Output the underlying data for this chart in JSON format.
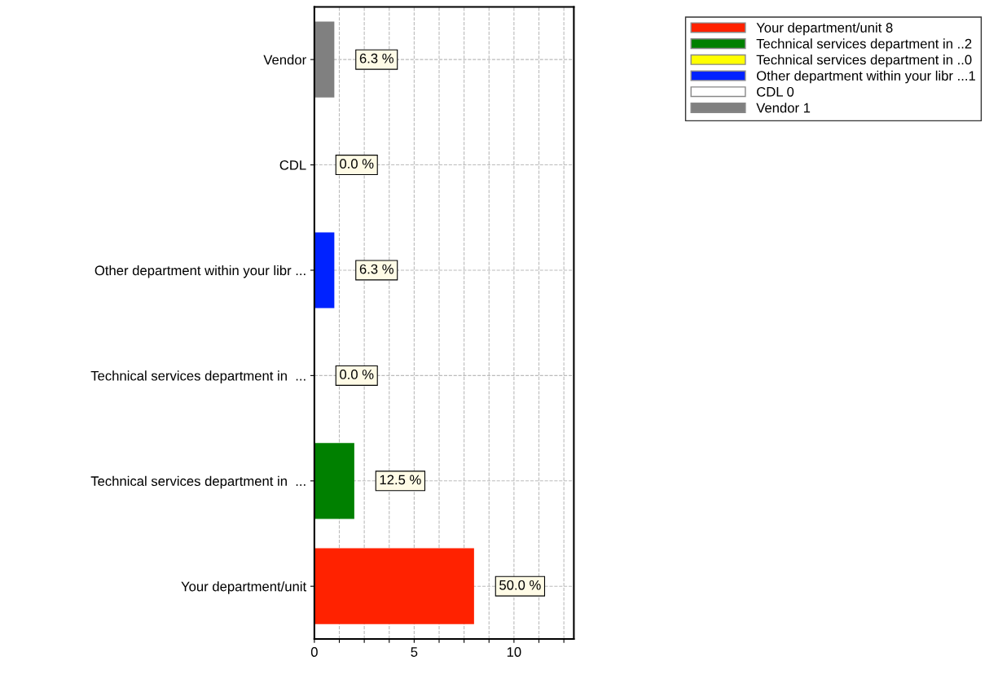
{
  "chart_data": {
    "type": "bar",
    "orientation": "horizontal",
    "categories": [
      "Vendor",
      "CDL",
      "Other department within your libr ...",
      "Technical services department in  ...",
      "Technical services department in  ...",
      "Your department/unit"
    ],
    "series": [
      {
        "name": "Your department/unit 8",
        "color": "#ff2200",
        "values": [
          null,
          null,
          null,
          null,
          null,
          8
        ]
      },
      {
        "name": "Technical services department in ..2",
        "color": "#008000",
        "values": [
          null,
          null,
          null,
          null,
          2,
          null
        ]
      },
      {
        "name": "Technical services department in ..0",
        "color": "#ffff00",
        "values": [
          null,
          null,
          null,
          0,
          null,
          null
        ]
      },
      {
        "name": "Other department within your libr ...1",
        "color": "#0022ff",
        "values": [
          null,
          null,
          1,
          null,
          null,
          null
        ]
      },
      {
        "name": "CDL 0",
        "color": "#ffffff",
        "values": [
          null,
          0,
          null,
          null,
          null,
          null
        ]
      },
      {
        "name": "Vendor 1",
        "color": "#808080",
        "values": [
          1,
          null,
          null,
          null,
          null,
          null
        ]
      }
    ],
    "annotations": [
      {
        "text": "6.3 %",
        "x": 1,
        "y": "Vendor"
      },
      {
        "text": "0.0 %",
        "x": 0,
        "y": "CDL"
      },
      {
        "text": "6.3 %",
        "x": 1,
        "y": "Other department within your libr ..."
      },
      {
        "text": "0.0 %",
        "x": 0,
        "y": "Technical services department in  ..."
      },
      "12.5 %",
      {
        "text": "50.0 %",
        "x": 8,
        "y": "Your department/unit"
      }
    ],
    "xlim": [
      0,
      13
    ],
    "xticks": [
      0,
      {
        "value": 1.25,
        "label": null
      },
      {
        "value": 2.5,
        "label": null
      },
      {
        "value": 3.75,
        "label": null
      },
      5,
      {
        "value": 6.25,
        "label": null
      },
      {
        "value": 7.5,
        "label": null
      },
      {
        "value": 8.75,
        "label": null
      },
      10,
      {
        "value": 11.25,
        "label": null
      },
      {
        "value": 12.5,
        "label": null
      }
    ],
    "grid": true,
    "legend": "top right"
  }
}
